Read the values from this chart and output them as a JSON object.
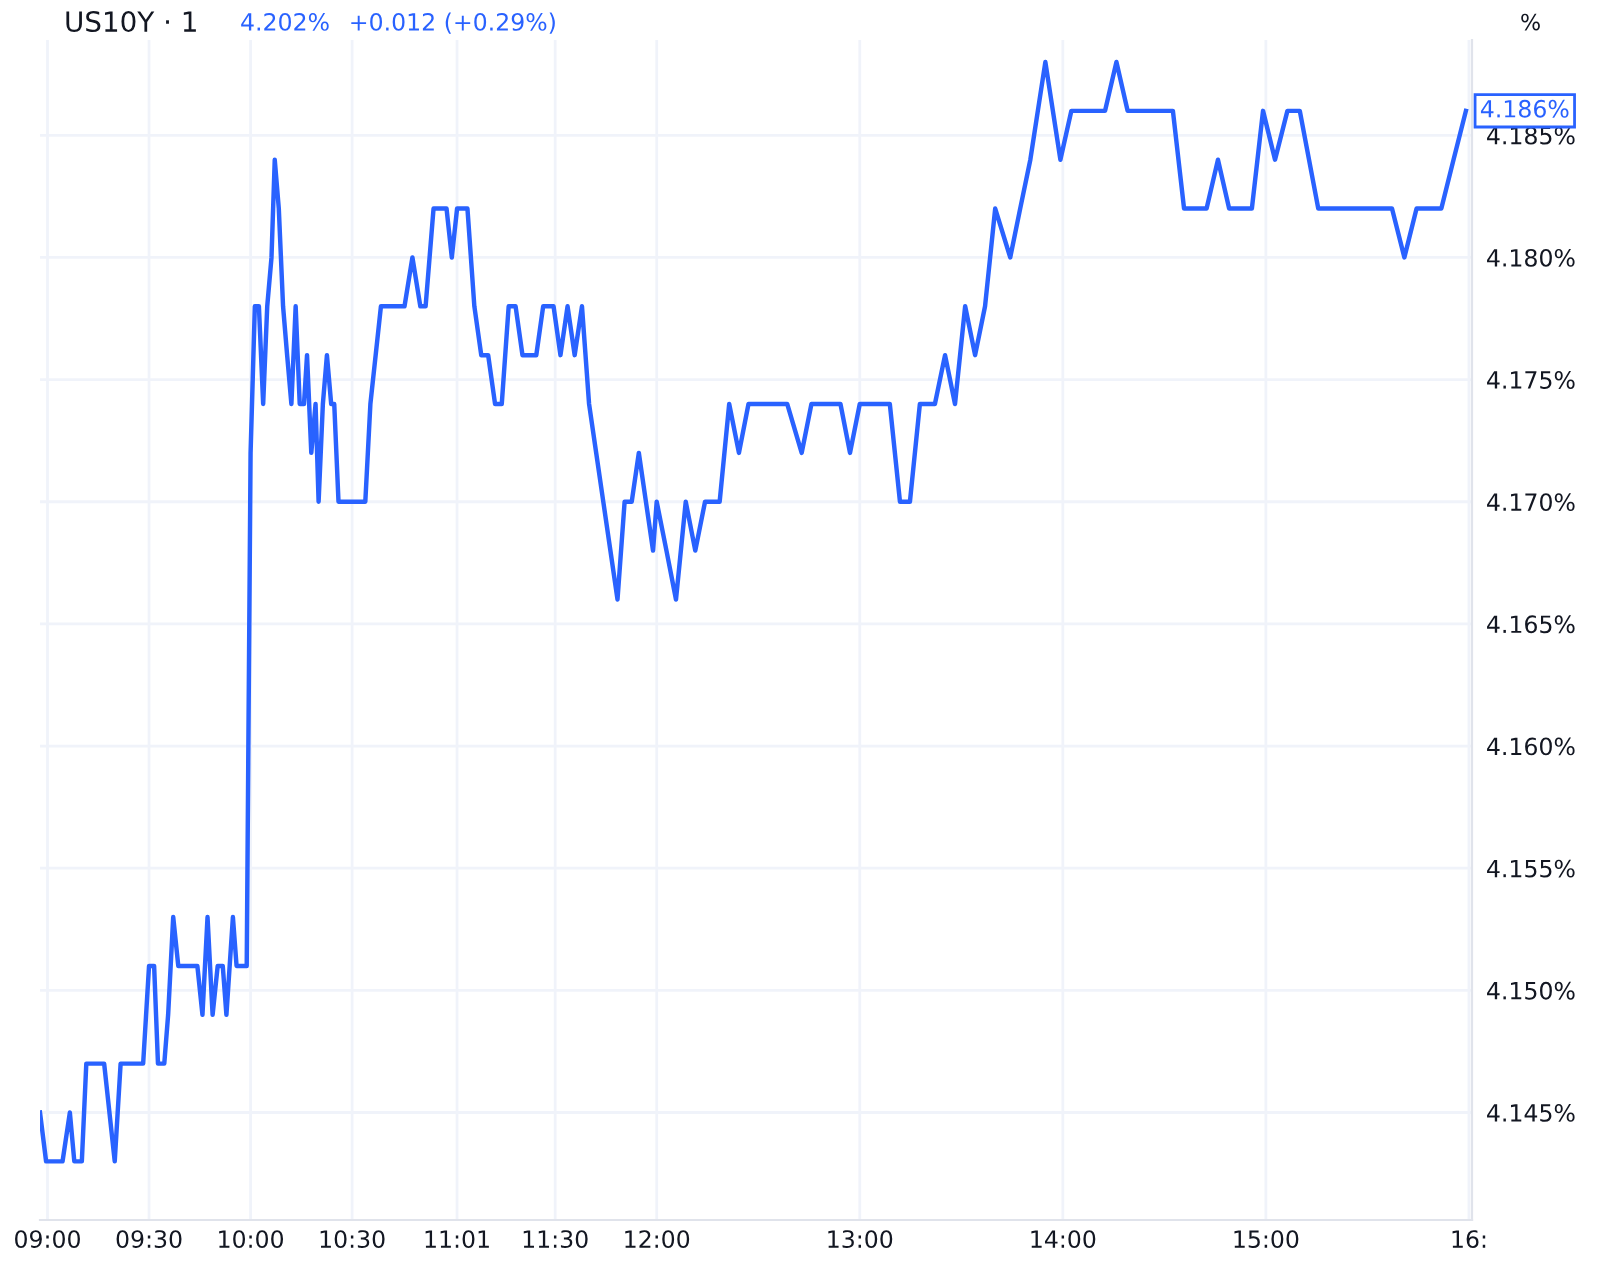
{
  "chart_data": {
    "type": "line",
    "title": "US10Y · 1",
    "annotations": [
      "4.202%",
      "+0.012 (+0.29%)",
      "%",
      {
        "text": "4.186%",
        "x": 15.985,
        "y": 4.186
      }
    ],
    "x": [
      8.963,
      8.993,
      9.074,
      9.11,
      9.132,
      9.169,
      9.191,
      9.279,
      9.331,
      9.36,
      9.471,
      9.5,
      9.525,
      9.544,
      9.575,
      9.594,
      9.619,
      9.644,
      9.738,
      9.763,
      9.788,
      9.813,
      9.838,
      9.863,
      9.881,
      9.913,
      9.931,
      9.981,
      10.0,
      10.021,
      10.041,
      10.062,
      10.082,
      10.103,
      10.119,
      10.139,
      10.16,
      10.18,
      10.201,
      10.222,
      10.242,
      10.263,
      10.278,
      10.299,
      10.32,
      10.335,
      10.356,
      10.376,
      10.397,
      10.412,
      10.433,
      10.565,
      10.59,
      10.642,
      10.758,
      10.797,
      10.836,
      10.862,
      10.901,
      10.965,
      10.991,
      11.017,
      11.068,
      11.102,
      11.136,
      11.17,
      11.204,
      11.237,
      11.271,
      11.305,
      11.339,
      11.407,
      11.441,
      11.492,
      11.526,
      11.561,
      11.596,
      11.632,
      11.667,
      11.702,
      11.737,
      11.772,
      11.807,
      11.842,
      11.877,
      11.912,
      11.947,
      11.982,
      12.0,
      12.048,
      12.095,
      12.143,
      12.19,
      12.238,
      12.31,
      12.357,
      12.405,
      12.452,
      12.643,
      12.714,
      12.762,
      12.905,
      12.952,
      13.0,
      13.148,
      13.198,
      13.247,
      13.296,
      13.37,
      13.42,
      13.469,
      13.519,
      13.568,
      13.617,
      13.667,
      13.741,
      13.79,
      13.84,
      13.914,
      13.988,
      14.042,
      14.208,
      14.264,
      14.319,
      14.542,
      14.597,
      14.708,
      14.764,
      14.819,
      14.931,
      14.986,
      15.045,
      15.106,
      15.167,
      15.258,
      15.621,
      15.682,
      15.742,
      15.864,
      15.924,
      15.985
    ],
    "series": [
      {
        "color": "#2962ff",
        "values": [
          4.145,
          4.143,
          4.143,
          4.145,
          4.143,
          4.143,
          4.147,
          4.147,
          4.143,
          4.147,
          4.147,
          4.151,
          4.151,
          4.147,
          4.147,
          4.149,
          4.153,
          4.151,
          4.151,
          4.149,
          4.153,
          4.149,
          4.151,
          4.151,
          4.149,
          4.153,
          4.151,
          4.151,
          4.172,
          4.178,
          4.178,
          4.174,
          4.178,
          4.18,
          4.184,
          4.182,
          4.178,
          4.176,
          4.174,
          4.178,
          4.174,
          4.174,
          4.176,
          4.172,
          4.174,
          4.17,
          4.174,
          4.176,
          4.174,
          4.174,
          4.17,
          4.17,
          4.174,
          4.178,
          4.178,
          4.18,
          4.178,
          4.178,
          4.182,
          4.182,
          4.18,
          4.182,
          4.182,
          4.178,
          4.176,
          4.176,
          4.174,
          4.174,
          4.178,
          4.178,
          4.176,
          4.176,
          4.178,
          4.178,
          4.176,
          4.178,
          4.176,
          4.178,
          4.174,
          4.172,
          4.17,
          4.168,
          4.166,
          4.17,
          4.17,
          4.172,
          4.17,
          4.168,
          4.17,
          4.168,
          4.166,
          4.17,
          4.168,
          4.17,
          4.17,
          4.174,
          4.172,
          4.174,
          4.174,
          4.172,
          4.174,
          4.174,
          4.172,
          4.174,
          4.174,
          4.17,
          4.17,
          4.174,
          4.174,
          4.176,
          4.174,
          4.178,
          4.176,
          4.178,
          4.182,
          4.18,
          4.182,
          4.184,
          4.188,
          4.184,
          4.186,
          4.186,
          4.188,
          4.186,
          4.186,
          4.182,
          4.182,
          4.184,
          4.182,
          4.182,
          4.186,
          4.184,
          4.186,
          4.186,
          4.182,
          4.182,
          4.18,
          4.182,
          4.182,
          4.184,
          4.186
        ]
      }
    ],
    "xlim": [
      8.963,
      16.015
    ],
    "xticks": [
      {
        "value": 9,
        "label": "09:00"
      },
      {
        "value": 9.5,
        "label": "09:30"
      },
      {
        "value": 10,
        "label": "10:00"
      },
      {
        "value": 10.5,
        "label": "10:30"
      },
      {
        "value": 11.0167,
        "label": "11:01"
      },
      {
        "value": 11.5,
        "label": "11:30"
      },
      {
        "value": 12,
        "label": "12:00"
      },
      {
        "value": 13,
        "label": "13:00"
      },
      {
        "value": 14,
        "label": "14:00"
      },
      {
        "value": 15,
        "label": "15:00"
      },
      {
        "value": 16,
        "label": "16:"
      }
    ],
    "ylim": [
      4.1406,
      4.1889
    ],
    "yticks": [
      {
        "value": 4.145,
        "label": "4.145%"
      },
      {
        "value": 4.15,
        "label": "4.150%"
      },
      {
        "value": 4.155,
        "label": "4.155%"
      },
      {
        "value": 4.16,
        "label": "4.160%"
      },
      {
        "value": 4.165,
        "label": "4.165%"
      },
      {
        "value": 4.17,
        "label": "4.170%"
      },
      {
        "value": 4.175,
        "label": "4.175%"
      },
      {
        "value": 4.18,
        "label": "4.180%"
      },
      {
        "value": 4.185,
        "label": "4.185%"
      }
    ],
    "grid": true,
    "legend": false,
    "marker": "none",
    "line_style": "solid"
  }
}
